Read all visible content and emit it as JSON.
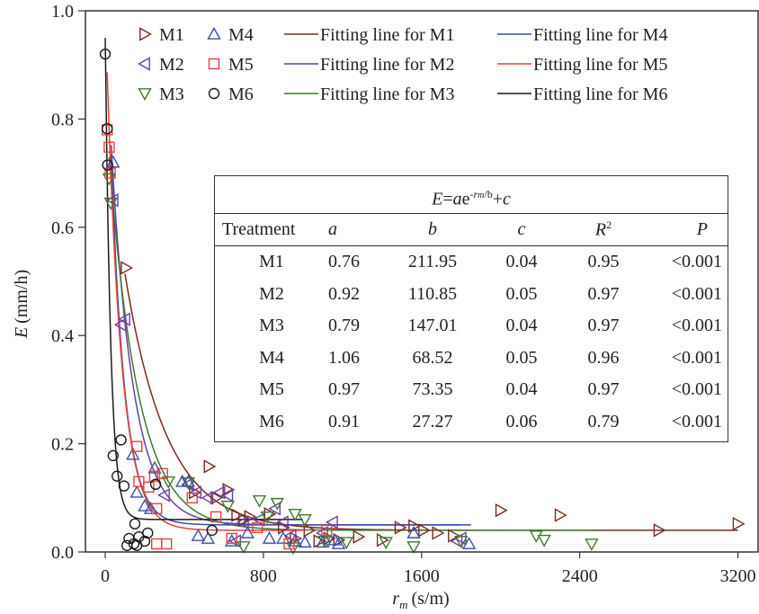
{
  "chart_data": {
    "type": "scatter",
    "title": "",
    "xlabel": "r_m (s/m)",
    "xlabel_main": "r",
    "xlabel_sub": "m",
    "xlabel_unit": "(s/m)",
    "ylabel": "E (mm/h)",
    "ylabel_var": "E",
    "ylabel_unit": "(mm/h)",
    "xlim": [
      -100,
      3300
    ],
    "ylim": [
      0,
      1.0
    ],
    "xticks": [
      0,
      800,
      1600,
      2400,
      3200
    ],
    "xtick_labels": [
      "0",
      "800",
      "1600",
      "2400",
      "3200"
    ],
    "yticks": [
      0,
      0.2,
      0.4,
      0.6,
      0.8,
      1.0
    ],
    "ytick_labels": [
      "0.0",
      "0.2",
      "0.4",
      "0.6",
      "0.8",
      "1.0"
    ],
    "grid": false,
    "legend_position": "top",
    "series": [
      {
        "name": "M1",
        "marker": "triangle-right",
        "color": "#7b2a22",
        "fit_label": "Fitting line for M1",
        "fit": {
          "a": 0.76,
          "b": 211.95,
          "c": 0.04,
          "x_range": [
            100,
            3200
          ]
        },
        "x": [
          105,
          525,
          620,
          665,
          730,
          830,
          900,
          960,
          1030,
          1080,
          1130,
          1180,
          1280,
          1400,
          1490,
          1560,
          1610,
          1680,
          1760,
          2000,
          2300,
          2800,
          3200,
          450,
          560,
          700
        ],
        "y": [
          0.525,
          0.158,
          0.115,
          0.068,
          0.065,
          0.07,
          0.045,
          0.025,
          0.04,
          0.02,
          0.025,
          0.022,
          0.028,
          0.022,
          0.045,
          0.048,
          0.04,
          0.035,
          0.03,
          0.077,
          0.068,
          0.04,
          0.052,
          0.11,
          0.1,
          0.06
        ]
      },
      {
        "name": "M2",
        "marker": "triangle-left",
        "color": "#6a3fa0",
        "fit_label": "Fitting line for M2",
        "fit": {
          "a": 0.92,
          "b": 110.85,
          "c": 0.05,
          "x_range": [
            30,
            1800
          ]
        },
        "x": [
          40,
          80,
          100,
          300,
          420,
          460,
          520,
          580,
          620,
          700,
          780,
          860,
          900,
          940,
          1100,
          1150,
          1800,
          1780,
          660
        ],
        "y": [
          0.65,
          0.42,
          0.43,
          0.105,
          0.125,
          0.11,
          0.1,
          0.11,
          0.105,
          0.055,
          0.06,
          0.08,
          0.055,
          0.03,
          0.035,
          0.055,
          0.025,
          0.02,
          0.02
        ]
      },
      {
        "name": "M3",
        "marker": "triangle-down",
        "color": "#3f7a2e",
        "fit_label": "Fitting line for M3",
        "fit": {
          "a": 0.79,
          "b": 147.01,
          "c": 0.04,
          "x_range": [
            20,
            2480
          ]
        },
        "x": [
          20,
          28,
          320,
          420,
          620,
          780,
          820,
          870,
          960,
          1010,
          1110,
          1220,
          1420,
          1560,
          1800,
          2180,
          2220,
          2460,
          700,
          950
        ],
        "y": [
          0.69,
          0.645,
          0.13,
          0.128,
          0.085,
          0.095,
          0.065,
          0.09,
          0.07,
          0.06,
          0.02,
          0.018,
          0.018,
          0.01,
          0.02,
          0.03,
          0.022,
          0.015,
          0.01,
          0.008
        ]
      },
      {
        "name": "M4",
        "marker": "triangle-up",
        "color": "#3b4fa5",
        "fit_label": "Fitting line for M4",
        "fit": {
          "a": 1.06,
          "b": 68.52,
          "c": 0.05,
          "x_range": [
            30,
            1850
          ]
        },
        "x": [
          40,
          140,
          250,
          160,
          200,
          230,
          390,
          420,
          470,
          520,
          640,
          720,
          830,
          900,
          960,
          1010,
          1100,
          1160,
          1180,
          1560,
          1840
        ],
        "y": [
          0.72,
          0.18,
          0.155,
          0.11,
          0.085,
          0.08,
          0.13,
          0.13,
          0.03,
          0.025,
          0.02,
          0.035,
          0.025,
          0.025,
          0.02,
          0.018,
          0.018,
          0.022,
          0.015,
          0.035,
          0.015
        ]
      },
      {
        "name": "M5",
        "marker": "square",
        "color": "#e8413a",
        "fit_label": "Fitting line for M5",
        "fit": {
          "a": 0.97,
          "b": 73.35,
          "c": 0.04,
          "x_range": [
            10,
            1000
          ]
        },
        "x": [
          10,
          20,
          25,
          160,
          170,
          220,
          250,
          260,
          290,
          440,
          560,
          640,
          770,
          930,
          1120,
          260,
          310
        ],
        "y": [
          0.78,
          0.748,
          0.7,
          0.195,
          0.13,
          0.12,
          0.14,
          0.08,
          0.145,
          0.1,
          0.065,
          0.025,
          0.045,
          0.015,
          0.04,
          0.015,
          0.015
        ]
      },
      {
        "name": "M6",
        "marker": "circle",
        "color": "#1a1a1a",
        "fit_label": "Fitting line for M6",
        "fit": {
          "a": 0.91,
          "b": 27.27,
          "c": 0.06,
          "x_range": [
            0,
            1000
          ]
        },
        "x": [
          0,
          10,
          12,
          40,
          60,
          80,
          95,
          110,
          120,
          145,
          150,
          160,
          170,
          200,
          215,
          255,
          540
        ],
        "y": [
          0.92,
          0.782,
          0.715,
          0.178,
          0.14,
          0.207,
          0.122,
          0.012,
          0.025,
          0.015,
          0.052,
          0.012,
          0.028,
          0.02,
          0.035,
          0.125,
          0.04
        ]
      }
    ]
  },
  "fit_table": {
    "equation_label": "E=ae-rm/b+c",
    "eq_E": "E",
    "eq_eq": "=",
    "eq_a": "a",
    "eq_e": "e",
    "eq_exp": "-r",
    "eq_exp_sub": "m",
    "eq_exp_tail": "/b",
    "eq_tail": "+c",
    "columns": [
      "Treatment",
      "a",
      "b",
      "c",
      "R2",
      "P"
    ],
    "col_treatment": "Treatment",
    "col_a": "a",
    "col_b": "b",
    "col_c": "c",
    "col_r": "R",
    "col_r_sup": "2",
    "col_p": "P",
    "rows": [
      {
        "treatment": "M1",
        "a": "0.76",
        "b": "211.95",
        "c": "0.04",
        "r2": "0.95",
        "p": "<0.001"
      },
      {
        "treatment": "M2",
        "a": "0.92",
        "b": "110.85",
        "c": "0.05",
        "r2": "0.97",
        "p": "<0.001"
      },
      {
        "treatment": "M3",
        "a": "0.79",
        "b": "147.01",
        "c": "0.04",
        "r2": "0.97",
        "p": "<0.001"
      },
      {
        "treatment": "M4",
        "a": "1.06",
        "b": "68.52",
        "c": "0.05",
        "r2": "0.96",
        "p": "<0.001"
      },
      {
        "treatment": "M5",
        "a": "0.97",
        "b": "73.35",
        "c": "0.04",
        "r2": "0.97",
        "p": "<0.001"
      },
      {
        "treatment": "M6",
        "a": "0.91",
        "b": "27.27",
        "c": "0.06",
        "r2": "0.79",
        "p": "<0.001"
      }
    ]
  }
}
